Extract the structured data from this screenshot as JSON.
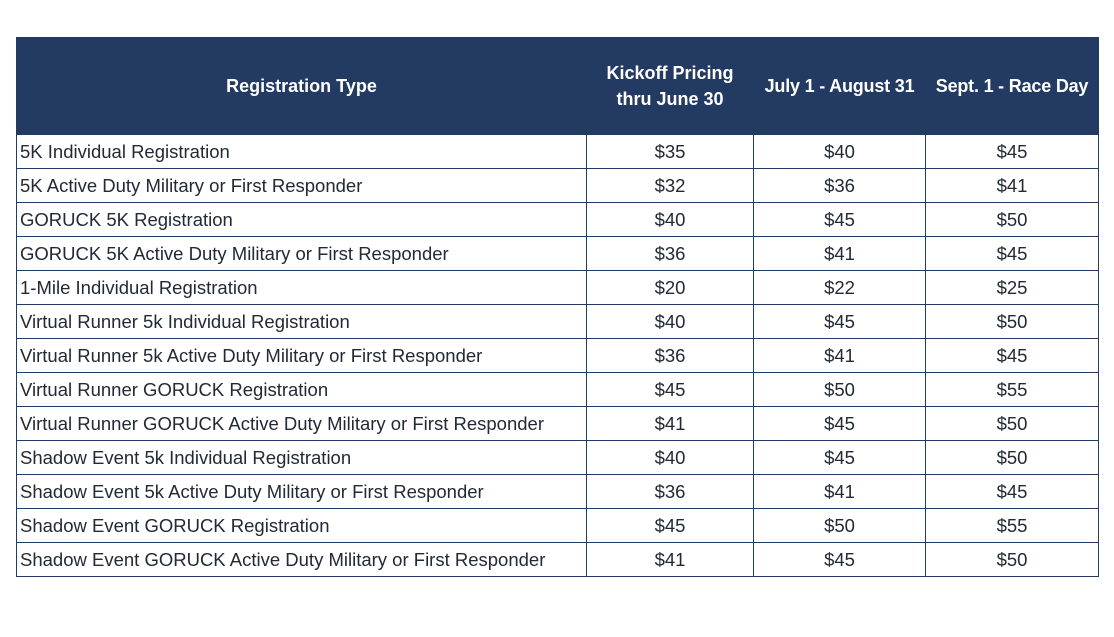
{
  "table": {
    "headers": [
      "Registration Type",
      "Kickoff Pricing thru June 30",
      "July 1 - August 31",
      "Sept. 1 - Race Day"
    ],
    "rows": [
      {
        "type": "5K Individual Registration",
        "kickoff": "$35",
        "summer": "$40",
        "race_day": "$45"
      },
      {
        "type": "5K Active Duty Military or First Responder",
        "kickoff": "$32",
        "summer": "$36",
        "race_day": "$41"
      },
      {
        "type": "GORUCK 5K Registration",
        "kickoff": "$40",
        "summer": "$45",
        "race_day": "$50"
      },
      {
        "type": "GORUCK 5K Active Duty Military or First Responder",
        "kickoff": "$36",
        "summer": "$41",
        "race_day": "$45"
      },
      {
        "type": "1-Mile Individual Registration",
        "kickoff": "$20",
        "summer": "$22",
        "race_day": "$25"
      },
      {
        "type": "Virtual Runner 5k Individual Registration",
        "kickoff": "$40",
        "summer": "$45",
        "race_day": "$50"
      },
      {
        "type": "Virtual Runner 5k Active Duty Military or First Responder",
        "kickoff": "$36",
        "summer": "$41",
        "race_day": "$45"
      },
      {
        "type": "Virtual Runner GORUCK Registration",
        "kickoff": "$45",
        "summer": "$50",
        "race_day": "$55"
      },
      {
        "type": "Virtual Runner GORUCK Active Duty Military or First Responder",
        "kickoff": "$41",
        "summer": "$45",
        "race_day": "$50"
      },
      {
        "type": "Shadow Event 5k Individual Registration",
        "kickoff": "$40",
        "summer": "$45",
        "race_day": "$50"
      },
      {
        "type": "Shadow Event 5k Active Duty Military or First Responder",
        "kickoff": "$36",
        "summer": "$41",
        "race_day": "$45"
      },
      {
        "type": "Shadow Event GORUCK Registration",
        "kickoff": "$45",
        "summer": "$50",
        "race_day": "$55"
      },
      {
        "type": "Shadow Event GORUCK Active Duty Military or First Responder",
        "kickoff": "$41",
        "summer": "$45",
        "race_day": "$50"
      }
    ]
  },
  "colors": {
    "header_bg": "#233a62",
    "header_text": "#ffffff",
    "border": "#233a62",
    "body_text": "#222a36"
  }
}
